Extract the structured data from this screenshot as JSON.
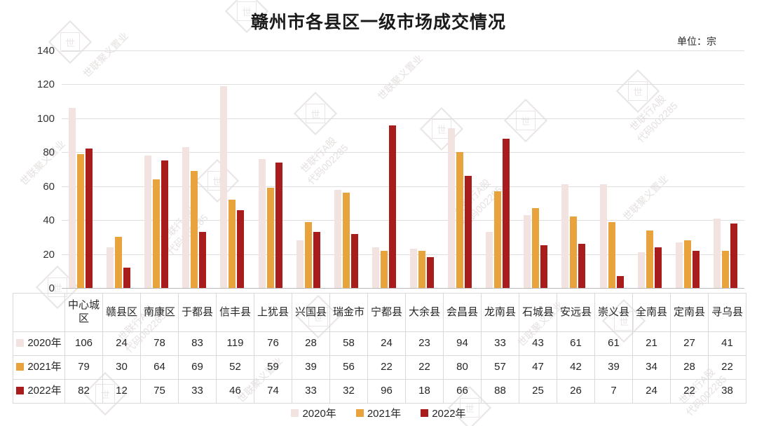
{
  "title": "赣州市各县区一级市场成交情况",
  "unit_label": "单位：宗",
  "watermark": {
    "brand": "世联聚义置业",
    "stock": "世联行A股",
    "code": "代码002285",
    "logo_glyph": "世"
  },
  "chart_data": {
    "type": "bar",
    "title": "赣州市各县区一级市场成交情况",
    "unit": "宗",
    "categories": [
      "中心城区",
      "赣县区",
      "南康区",
      "于都县",
      "信丰县",
      "上犹县",
      "兴国县",
      "瑞金市",
      "宁都县",
      "大余县",
      "会昌县",
      "龙南县",
      "石城县",
      "安远县",
      "崇义县",
      "全南县",
      "定南县",
      "寻乌县"
    ],
    "series": [
      {
        "name": "2020年",
        "color": "#f2e3e1",
        "values": [
          106,
          24,
          78,
          83,
          119,
          76,
          28,
          58,
          24,
          23,
          94,
          33,
          43,
          61,
          61,
          21,
          27,
          41
        ]
      },
      {
        "name": "2021年",
        "color": "#e8a33c",
        "values": [
          79,
          30,
          64,
          69,
          52,
          59,
          39,
          56,
          22,
          22,
          80,
          57,
          47,
          42,
          39,
          34,
          28,
          22
        ]
      },
      {
        "name": "2022年",
        "color": "#a81c1c",
        "values": [
          82,
          12,
          75,
          33,
          46,
          74,
          33,
          32,
          96,
          18,
          66,
          88,
          25,
          26,
          7,
          24,
          22,
          38
        ]
      }
    ],
    "ylim": [
      0,
      140
    ],
    "yticks": [
      0,
      20,
      40,
      60,
      80,
      100,
      120,
      140
    ],
    "grid": true,
    "legend_position": "bottom"
  }
}
